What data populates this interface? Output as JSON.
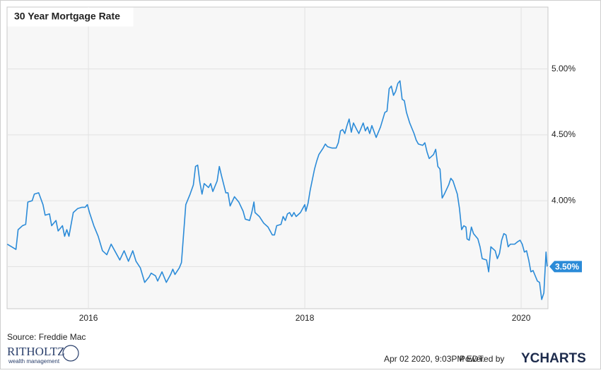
{
  "chart_data": {
    "type": "line",
    "title": "30 Year Mortgage Rate",
    "x": [
      2015.25,
      2015.29,
      2015.33,
      2015.35,
      2015.39,
      2015.42,
      2015.44,
      2015.48,
      2015.5,
      2015.54,
      2015.58,
      2015.6,
      2015.64,
      2015.66,
      2015.7,
      2015.72,
      2015.76,
      2015.78,
      2015.8,
      2015.82,
      2015.86,
      2015.9,
      2015.94,
      2015.97,
      2015.99,
      2016.01,
      2016.05,
      2016.09,
      2016.13,
      2016.17,
      2016.21,
      2016.25,
      2016.29,
      2016.33,
      2016.37,
      2016.41,
      2016.44,
      2016.48,
      2016.52,
      2016.56,
      2016.58,
      2016.62,
      2016.64,
      2016.68,
      2016.72,
      2016.76,
      2016.78,
      2016.8,
      2016.84,
      2016.86,
      2016.88,
      2016.9,
      2016.94,
      2016.97,
      2016.99,
      2017.01,
      2017.03,
      2017.05,
      2017.07,
      2017.11,
      2017.13,
      2017.15,
      2017.19,
      2017.21,
      2017.23,
      2017.27,
      2017.29,
      2017.31,
      2017.35,
      2017.39,
      2017.43,
      2017.45,
      2017.49,
      2017.51,
      2017.53,
      2017.54,
      2017.58,
      2017.62,
      2017.66,
      2017.7,
      2017.72,
      2017.74,
      2017.78,
      2017.8,
      2017.82,
      2017.84,
      2017.86,
      2017.88,
      2017.9,
      2017.92,
      2017.96,
      2018.0,
      2018.01,
      2018.03,
      2018.05,
      2018.07,
      2018.09,
      2018.11,
      2018.13,
      2018.17,
      2018.19,
      2018.21,
      2018.25,
      2018.29,
      2018.31,
      2018.33,
      2018.35,
      2018.37,
      2018.39,
      2018.41,
      2018.43,
      2018.45,
      2018.48,
      2018.5,
      2018.54,
      2018.56,
      2018.58,
      2018.6,
      2018.62,
      2018.66,
      2018.7,
      2018.74,
      2018.76,
      2018.78,
      2018.8,
      2018.82,
      2018.84,
      2018.86,
      2018.88,
      2018.9,
      2018.92,
      2018.94,
      2018.97,
      2019.01,
      2019.03,
      2019.05,
      2019.09,
      2019.11,
      2019.13,
      2019.15,
      2019.19,
      2019.21,
      2019.23,
      2019.25,
      2019.27,
      2019.29,
      2019.33,
      2019.35,
      2019.37,
      2019.39,
      2019.41,
      2019.43,
      2019.45,
      2019.47,
      2019.49,
      2019.5,
      2019.52,
      2019.54,
      2019.56,
      2019.6,
      2019.62,
      2019.64,
      2019.68,
      2019.7,
      2019.72,
      2019.76,
      2019.78,
      2019.8,
      2019.82,
      2019.84,
      2019.86,
      2019.88,
      2019.9,
      2019.94,
      2019.97,
      2019.99,
      2020.01,
      2020.03,
      2020.05,
      2020.07,
      2020.09,
      2020.11,
      2020.13,
      2020.15,
      2020.17,
      2020.19,
      2020.21,
      2020.23,
      2020.24
    ],
    "series": [
      {
        "name": "30 Year Mortgage Rate",
        "color": "#2b8bd8",
        "values": [
          3.67,
          3.65,
          3.63,
          3.78,
          3.81,
          3.82,
          3.99,
          4.0,
          4.05,
          4.06,
          3.97,
          3.89,
          3.9,
          3.81,
          3.85,
          3.77,
          3.81,
          3.73,
          3.78,
          3.73,
          3.91,
          3.94,
          3.95,
          3.95,
          3.97,
          3.91,
          3.81,
          3.73,
          3.62,
          3.59,
          3.67,
          3.61,
          3.55,
          3.62,
          3.54,
          3.62,
          3.54,
          3.49,
          3.38,
          3.42,
          3.45,
          3.43,
          3.39,
          3.46,
          3.38,
          3.44,
          3.48,
          3.44,
          3.49,
          3.53,
          3.75,
          3.97,
          4.05,
          4.12,
          4.26,
          4.27,
          4.14,
          4.05,
          4.13,
          4.1,
          4.13,
          4.07,
          4.15,
          4.26,
          4.19,
          4.06,
          4.06,
          3.96,
          4.03,
          3.99,
          3.92,
          3.86,
          3.85,
          3.91,
          3.99,
          3.91,
          3.88,
          3.83,
          3.8,
          3.74,
          3.74,
          3.81,
          3.82,
          3.88,
          3.85,
          3.9,
          3.91,
          3.88,
          3.91,
          3.88,
          3.91,
          3.97,
          3.92,
          3.98,
          4.08,
          4.16,
          4.24,
          4.3,
          4.35,
          4.4,
          4.43,
          4.41,
          4.4,
          4.4,
          4.44,
          4.53,
          4.54,
          4.51,
          4.57,
          4.62,
          4.52,
          4.59,
          4.54,
          4.51,
          4.59,
          4.53,
          4.56,
          4.51,
          4.57,
          4.48,
          4.56,
          4.67,
          4.68,
          4.85,
          4.87,
          4.8,
          4.83,
          4.89,
          4.91,
          4.77,
          4.76,
          4.67,
          4.59,
          4.51,
          4.46,
          4.43,
          4.42,
          4.44,
          4.37,
          4.32,
          4.35,
          4.39,
          4.26,
          4.24,
          4.02,
          4.05,
          4.12,
          4.17,
          4.15,
          4.1,
          4.05,
          3.94,
          3.78,
          3.81,
          3.8,
          3.71,
          3.7,
          3.8,
          3.75,
          3.71,
          3.65,
          3.56,
          3.55,
          3.46,
          3.65,
          3.62,
          3.56,
          3.6,
          3.7,
          3.75,
          3.74,
          3.65,
          3.67,
          3.67,
          3.69,
          3.7,
          3.67,
          3.61,
          3.62,
          3.55,
          3.46,
          3.47,
          3.43,
          3.39,
          3.38,
          3.25,
          3.3,
          3.61,
          3.5
        ]
      }
    ],
    "xlim": [
      2015.248,
      2020.248
    ],
    "xticks": [
      2016,
      2018,
      2020
    ],
    "ylim": [
      3.18,
      5.47
    ],
    "yticks": [
      {
        "value": 3.5,
        "label": "3.50%"
      },
      {
        "value": 4,
        "label": "4.00%"
      },
      {
        "value": 4.5,
        "label": "4.50%"
      },
      {
        "value": 5,
        "label": "5.00%"
      }
    ],
    "grid": true,
    "last_value": {
      "value": 3.5,
      "label": "3.50%"
    }
  },
  "footer": {
    "source": "Source: Freddie Mac",
    "timestamp": "Apr 02 2020, 9:03PM EDT.",
    "powered": "Powered by",
    "brand": "YCHARTS",
    "logo": "RITHOLTZ",
    "logo_sub": "wealth management"
  }
}
